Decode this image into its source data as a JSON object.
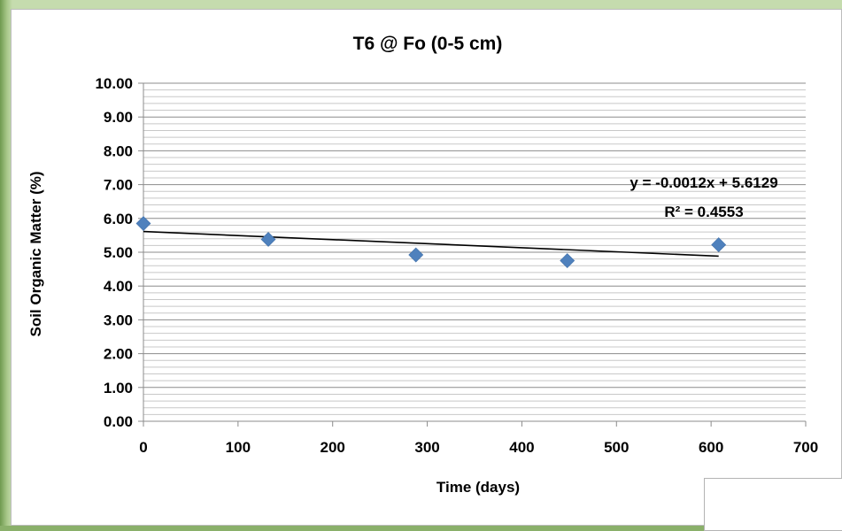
{
  "chart_data": {
    "type": "scatter",
    "title": "T6 @ Fo (0-5 cm)",
    "xlabel": "Time (days)",
    "ylabel": "Soil Organic Matter (%)",
    "xlim": [
      0,
      700
    ],
    "ylim": [
      0,
      10
    ],
    "x_ticks": [
      "0",
      "100",
      "200",
      "300",
      "400",
      "500",
      "600",
      "700"
    ],
    "y_ticks": [
      "0.00",
      "1.00",
      "2.00",
      "3.00",
      "4.00",
      "5.00",
      "6.00",
      "7.00",
      "8.00",
      "9.00",
      "10.00"
    ],
    "grid": true,
    "marker": "diamond",
    "marker_color": "#4f81bd",
    "points": [
      {
        "x": 0,
        "y": 5.85
      },
      {
        "x": 132,
        "y": 5.38
      },
      {
        "x": 288,
        "y": 4.92
      },
      {
        "x": 448,
        "y": 4.75
      },
      {
        "x": 608,
        "y": 5.22
      }
    ],
    "trendline": {
      "slope": -0.0012,
      "intercept": 5.6129,
      "x_range": [
        0,
        608
      ],
      "equation": "y = -0.0012x + 5.6129",
      "r_squared": "R² = 0.4553"
    }
  }
}
